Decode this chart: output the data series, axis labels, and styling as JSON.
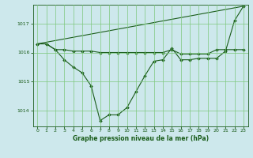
{
  "title": "Graphe pression niveau de la mer (hPa)",
  "bg_color": "#cde8ec",
  "line_color": "#1a5c1a",
  "grid_color": "#7dc87d",
  "xlim": [
    -0.5,
    23.5
  ],
  "ylim": [
    1013.45,
    1017.65
  ],
  "yticks": [
    1014,
    1015,
    1016,
    1017
  ],
  "xticks": [
    0,
    1,
    2,
    3,
    4,
    5,
    6,
    7,
    8,
    9,
    10,
    11,
    12,
    13,
    14,
    15,
    16,
    17,
    18,
    19,
    20,
    21,
    22,
    23
  ],
  "series_flat": {
    "x": [
      0,
      1,
      2,
      3,
      4,
      5,
      6,
      7,
      8,
      9,
      10,
      11,
      12,
      13,
      14,
      15,
      16,
      17,
      18,
      19,
      20,
      21,
      22,
      23
    ],
    "y": [
      1016.3,
      1016.3,
      1016.1,
      1016.1,
      1016.05,
      1016.05,
      1016.05,
      1016.0,
      1016.0,
      1016.0,
      1016.0,
      1016.0,
      1016.0,
      1016.0,
      1016.0,
      1016.1,
      1015.95,
      1015.95,
      1015.95,
      1015.95,
      1016.1,
      1016.1,
      1016.1,
      1016.1
    ]
  },
  "series_diagonal": {
    "x": [
      0,
      23
    ],
    "y": [
      1016.3,
      1017.6
    ]
  },
  "series_wavy": {
    "x": [
      0,
      1,
      2,
      3,
      4,
      5,
      6,
      7,
      8,
      9,
      10,
      11,
      12,
      13,
      14,
      15,
      16,
      17,
      18,
      19,
      20,
      21,
      22,
      23
    ],
    "y": [
      1016.3,
      1016.3,
      1016.1,
      1015.75,
      1015.5,
      1015.3,
      1014.85,
      1013.65,
      1013.85,
      1013.85,
      1014.1,
      1014.65,
      1015.2,
      1015.7,
      1015.75,
      1016.15,
      1015.75,
      1015.75,
      1015.8,
      1015.8,
      1015.8,
      1016.05,
      1017.1,
      1017.6
    ]
  }
}
